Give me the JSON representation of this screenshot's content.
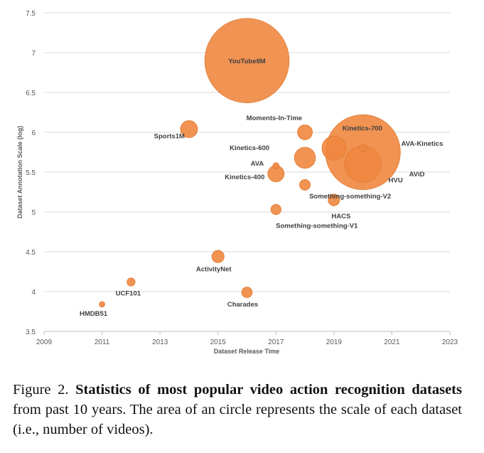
{
  "chart_data": {
    "type": "bubble",
    "xlabel": "Dataset Release Time",
    "ylabel": "Dataset Annotation Scale (log)",
    "xlim": [
      2009,
      2023
    ],
    "ylim": [
      3.5,
      7.5
    ],
    "xticks": [
      "2009",
      "2011",
      "2013",
      "2015",
      "2017",
      "2019",
      "2021",
      "2023"
    ],
    "yticks": [
      "3.5",
      "4",
      "4.5",
      "5",
      "5.5",
      "6",
      "6.5",
      "7",
      "7.5"
    ],
    "bubble_color": "#F0873F",
    "points": [
      {
        "name": "YouTube8M",
        "x": 2016,
        "y": 6.9,
        "size": 8000
      },
      {
        "name": "AVA-Kinetics",
        "x": 2020,
        "y": 5.75,
        "size": 6300
      },
      {
        "name": "AViD",
        "x": 2020,
        "y": 5.6,
        "size": 1500
      },
      {
        "name": "Kinetics-700",
        "x": 2019,
        "y": 5.8,
        "size": 650
      },
      {
        "name": "Kinetics-600",
        "x": 2018,
        "y": 5.68,
        "size": 500
      },
      {
        "name": "Moments-In-Time",
        "x": 2018,
        "y": 6.0,
        "size": 250
      },
      {
        "name": "Sports1M",
        "x": 2014,
        "y": 6.04,
        "size": 330
      },
      {
        "name": "Kinetics-400",
        "x": 2017,
        "y": 5.48,
        "size": 300
      },
      {
        "name": "AVA",
        "x": 2017,
        "y": 5.58,
        "size": 45
      },
      {
        "name": "HVU",
        "x": 2020,
        "y": 5.8,
        "size": 60
      },
      {
        "name": "Something-something-V2",
        "x": 2018,
        "y": 5.34,
        "size": 130
      },
      {
        "name": "HACS",
        "x": 2019,
        "y": 5.15,
        "size": 150
      },
      {
        "name": "Something-something-V1",
        "x": 2017,
        "y": 5.03,
        "size": 120
      },
      {
        "name": "ActivityNet",
        "x": 2015,
        "y": 4.44,
        "size": 170
      },
      {
        "name": "UCF101",
        "x": 2012,
        "y": 4.12,
        "size": 75
      },
      {
        "name": "Charades",
        "x": 2016,
        "y": 3.99,
        "size": 125
      },
      {
        "name": "HMDB51",
        "x": 2011,
        "y": 3.84,
        "size": 35
      }
    ]
  },
  "caption": {
    "prefix": "Figure 2. ",
    "bold": "Statistics of most popular video action recognition datasets",
    "rest": " from past 10 years.  The area of an circle represents the scale of each dataset (i.e., number of videos)."
  }
}
